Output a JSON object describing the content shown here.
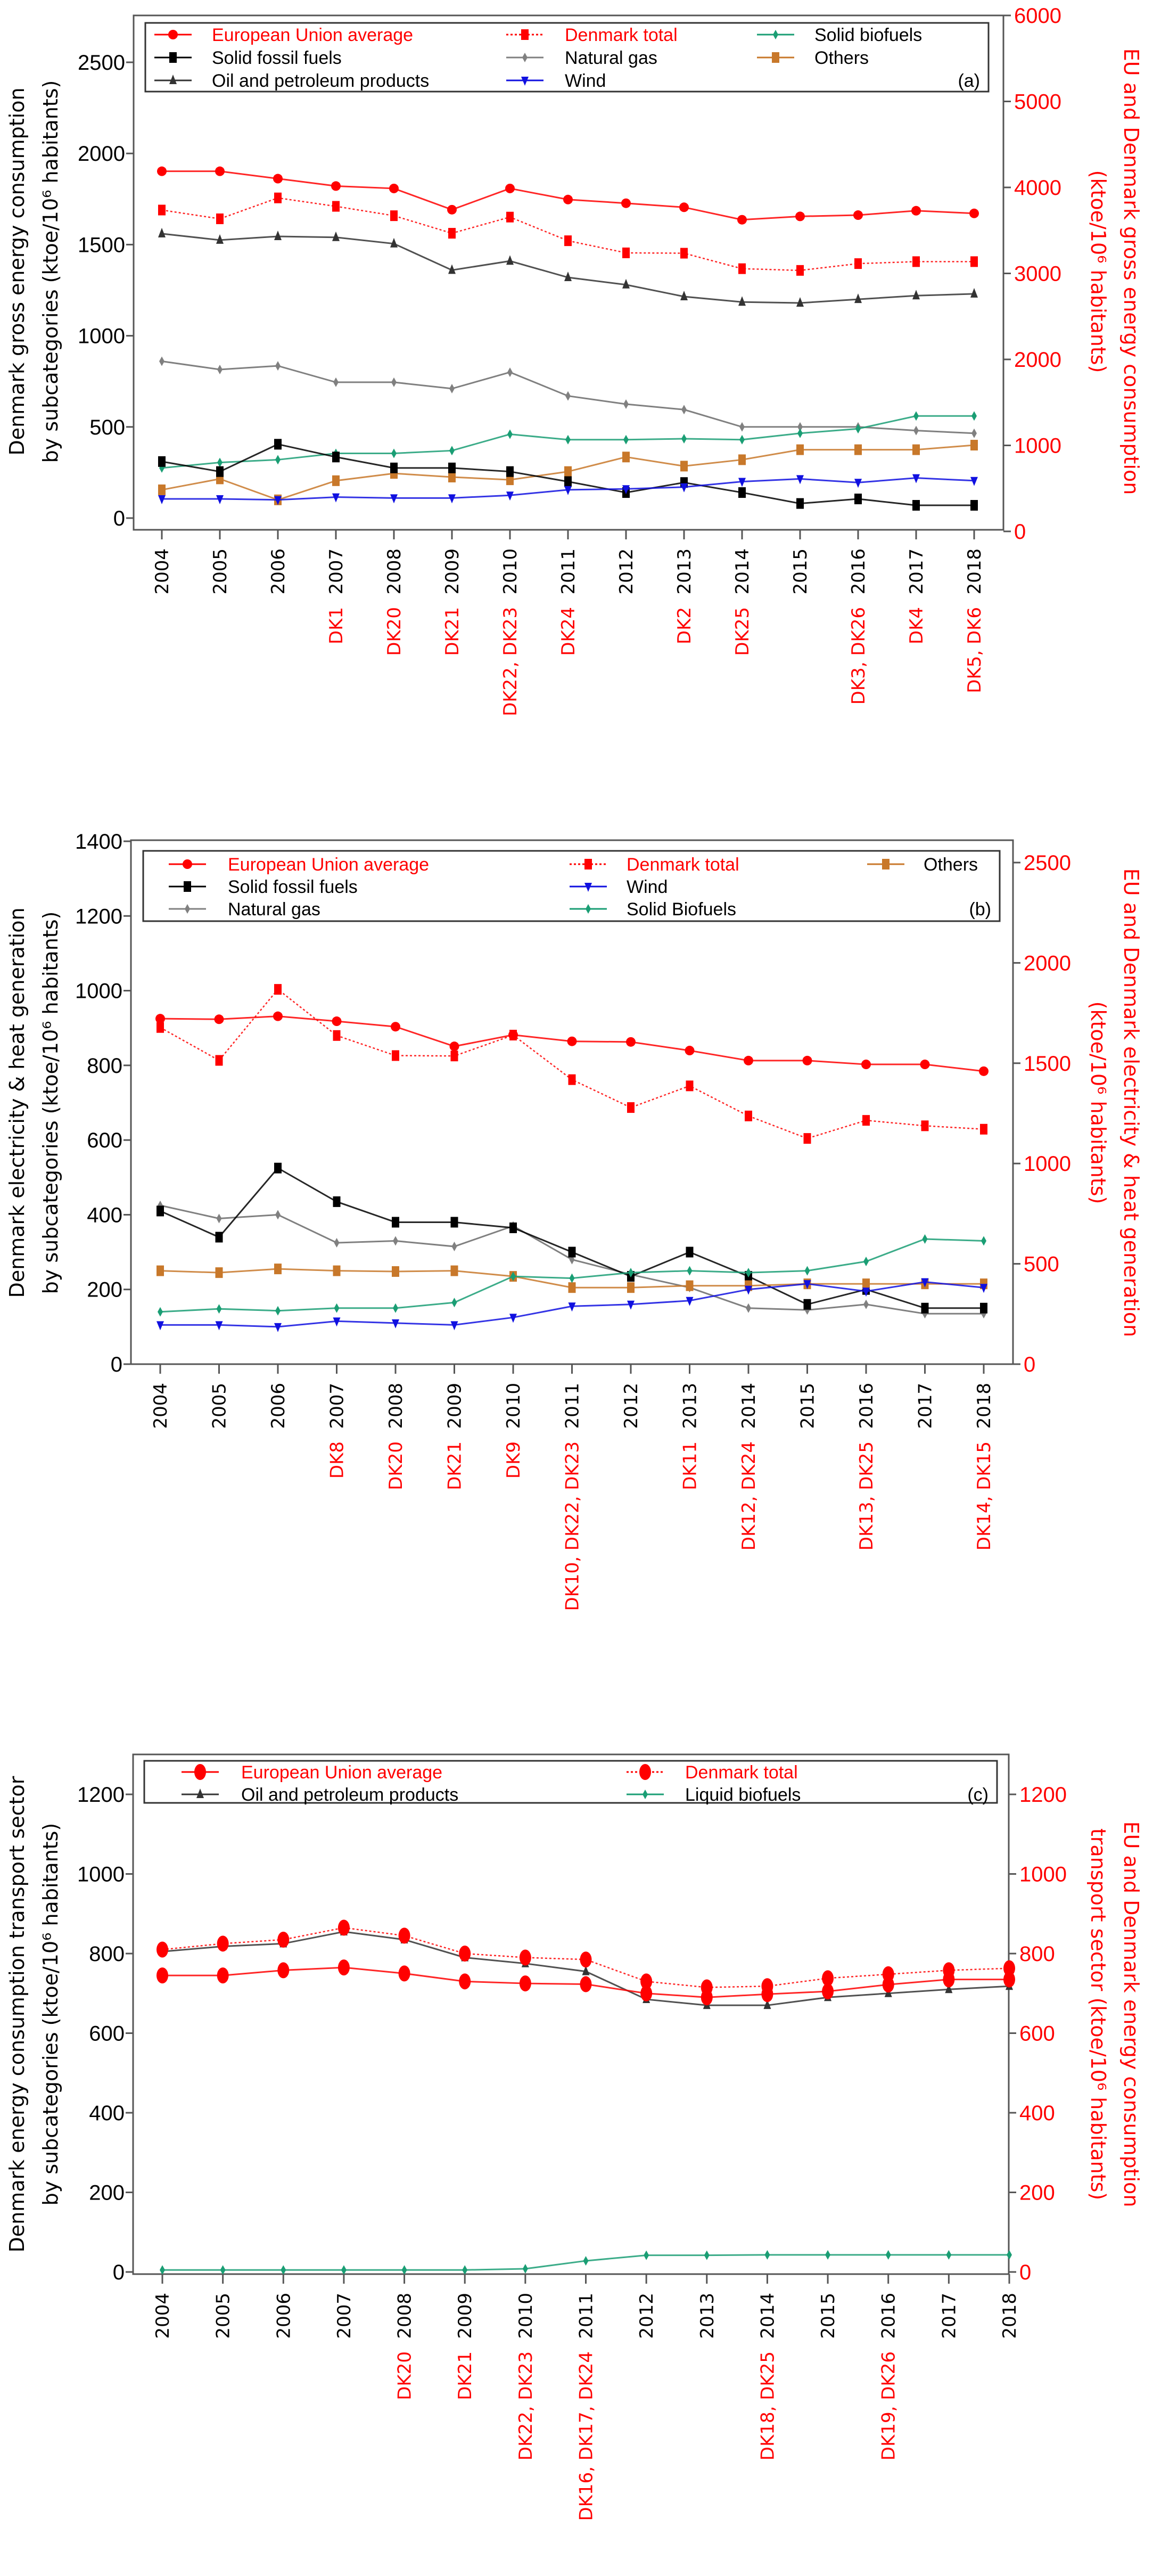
{
  "chart_data": [
    {
      "type": "line",
      "panel_label": "(a)",
      "ylabel_left": [
        "Denmark gross energy consumption",
        "by subcategories (ktoe/10⁶ habitants)"
      ],
      "ylabel_right": [
        "EU and Denmark gross energy consumption",
        "(ktoe/10⁶ habitants)"
      ],
      "left_axis": {
        "range": [
          0,
          2750
        ],
        "ticks": [
          0,
          500,
          1000,
          1500,
          2000,
          2500
        ]
      },
      "right_axis": {
        "range": [
          0,
          6000
        ],
        "ticks": [
          0,
          1000,
          2000,
          3000,
          4000,
          5000,
          6000
        ]
      },
      "x": [
        2004,
        2005,
        2006,
        2007,
        2008,
        2009,
        2010,
        2011,
        2012,
        2013,
        2014,
        2015,
        2016,
        2017,
        2018
      ],
      "x_annotations": [
        "",
        "",
        "",
        "DK1",
        "DK20",
        "DK21",
        "DK22, DK23",
        "DK24",
        "",
        "DK2",
        "DK25",
        "",
        "DK3, DK26",
        "DK4",
        "DK5, DK6"
      ],
      "legend_columns": [
        [
          "European Union average",
          "Solid fossil fuels",
          "Oil and petroleum products"
        ],
        [
          "Denmark total",
          "Natural gas",
          "Wind"
        ],
        [
          "Solid biofuels",
          "Others"
        ]
      ],
      "series": [
        {
          "name": "European Union average",
          "axis": "right",
          "color": "#ff0000",
          "marker": "circle",
          "dash": false,
          "text_red": true,
          "values": [
            4188,
            4188,
            4102,
            4016,
            3988,
            3741,
            3988,
            3859,
            3816,
            3769,
            3624,
            3663,
            3678,
            3729,
            3698
          ]
        },
        {
          "name": "Denmark total",
          "axis": "right",
          "color": "#ff0000",
          "marker": "square",
          "dash": true,
          "text_red": true,
          "values": [
            3737,
            3635,
            3878,
            3780,
            3671,
            3467,
            3655,
            3380,
            3239,
            3235,
            3055,
            3035,
            3114,
            3137,
            3137
          ]
        },
        {
          "name": "Oil and petroleum products",
          "axis": "left",
          "color": "#333333",
          "marker": "triangle-up",
          "dash": false,
          "values": [
            1560,
            1525,
            1545,
            1540,
            1505,
            1360,
            1410,
            1320,
            1280,
            1215,
            1185,
            1180,
            1200,
            1220,
            1230
          ]
        },
        {
          "name": "Natural gas",
          "axis": "left",
          "color": "#808080",
          "marker": "diamond",
          "dash": false,
          "values": [
            860,
            815,
            835,
            745,
            745,
            710,
            800,
            670,
            625,
            595,
            500,
            500,
            500,
            480,
            465
          ]
        },
        {
          "name": "Solid biofuels",
          "axis": "left",
          "color": "#1a9e74",
          "marker": "diamond",
          "dash": false,
          "values": [
            275,
            305,
            320,
            355,
            355,
            370,
            460,
            430,
            430,
            435,
            430,
            465,
            490,
            560,
            560
          ]
        },
        {
          "name": "Others",
          "axis": "left",
          "color": "#c8782a",
          "marker": "square",
          "dash": false,
          "values": [
            155,
            215,
            100,
            205,
            245,
            225,
            210,
            255,
            335,
            285,
            320,
            375,
            375,
            375,
            400
          ]
        },
        {
          "name": "Solid fossil fuels",
          "axis": "left",
          "color": "#000000",
          "marker": "square",
          "dash": false,
          "values": [
            310,
            255,
            405,
            335,
            275,
            275,
            255,
            200,
            140,
            195,
            140,
            80,
            105,
            70,
            70
          ]
        },
        {
          "name": "Wind",
          "axis": "left",
          "color": "#1010e0",
          "marker": "triangle-down",
          "dash": false,
          "values": [
            105,
            105,
            100,
            115,
            110,
            110,
            125,
            155,
            160,
            170,
            200,
            215,
            195,
            220,
            205
          ]
        }
      ]
    },
    {
      "type": "line",
      "panel_label": "(b)",
      "ylabel_left": [
        "Denmark electricity & heat generation",
        "by subcategories (ktoe/10⁶ habitants)"
      ],
      "ylabel_right": [
        "EU and Denmark electricity & heat generation",
        "(ktoe/10⁶ habitants)"
      ],
      "left_axis": {
        "range": [
          0,
          1400
        ],
        "ticks": [
          0,
          200,
          400,
          600,
          800,
          1000,
          1200,
          1400
        ]
      },
      "right_axis": {
        "range": [
          0,
          2600
        ],
        "ticks": [
          0,
          500,
          1000,
          1500,
          2000,
          2500
        ]
      },
      "x": [
        2004,
        2005,
        2006,
        2007,
        2008,
        2009,
        2010,
        2011,
        2012,
        2013,
        2014,
        2015,
        2016,
        2017,
        2018
      ],
      "x_annotations": [
        "",
        "",
        "",
        "DK8",
        "DK20",
        "DK21",
        "DK9",
        "DK10, DK22, DK23",
        "",
        "DK11",
        "DK12, DK24",
        "",
        "DK13, DK25",
        "",
        "DK14, DK15"
      ],
      "legend_columns": [
        [
          "European Union average",
          "Solid fossil fuels",
          "Natural gas"
        ],
        [
          "Denmark total",
          "Wind",
          "Solid Biofuels"
        ],
        [
          "Others"
        ]
      ],
      "series": [
        {
          "name": "European Union average",
          "axis": "right",
          "color": "#ff0000",
          "marker": "circle",
          "dash": false,
          "text_red": true,
          "values": [
            1722,
            1719,
            1734,
            1709,
            1682,
            1584,
            1641,
            1609,
            1606,
            1563,
            1513,
            1513,
            1494,
            1494,
            1460
          ]
        },
        {
          "name": "Denmark total",
          "axis": "right",
          "color": "#ff0000",
          "marker": "square",
          "dash": true,
          "text_red": true,
          "values": [
            1678,
            1514,
            1868,
            1638,
            1538,
            1536,
            1640,
            1418,
            1279,
            1387,
            1237,
            1125,
            1215,
            1188,
            1171
          ]
        },
        {
          "name": "Natural gas",
          "axis": "left",
          "color": "#808080",
          "marker": "diamond",
          "dash": false,
          "values": [
            425,
            390,
            400,
            325,
            330,
            315,
            370,
            280,
            240,
            205,
            150,
            145,
            160,
            135,
            135
          ]
        },
        {
          "name": "Solid fossil fuels",
          "axis": "left",
          "color": "#000000",
          "marker": "square",
          "dash": false,
          "values": [
            410,
            340,
            525,
            435,
            380,
            380,
            365,
            300,
            235,
            300,
            235,
            160,
            200,
            150,
            150
          ]
        },
        {
          "name": "Others",
          "axis": "left",
          "color": "#c8782a",
          "marker": "square",
          "dash": false,
          "values": [
            250,
            245,
            255,
            250,
            248,
            250,
            235,
            205,
            205,
            210,
            210,
            215,
            215,
            215,
            215
          ]
        },
        {
          "name": "Solid Biofuels",
          "axis": "left",
          "color": "#1a9e74",
          "marker": "diamond",
          "dash": false,
          "values": [
            140,
            148,
            143,
            150,
            150,
            165,
            235,
            230,
            245,
            250,
            245,
            250,
            275,
            335,
            330
          ]
        },
        {
          "name": "Wind",
          "axis": "left",
          "color": "#1010e0",
          "marker": "triangle-down",
          "dash": false,
          "values": [
            105,
            105,
            100,
            115,
            110,
            105,
            125,
            155,
            160,
            170,
            200,
            215,
            195,
            220,
            205
          ]
        }
      ]
    },
    {
      "type": "line",
      "panel_label": "(c)",
      "ylabel_left": [
        "Denmark energy consumption transport sector",
        "by subcategories (ktoe/10⁶ habitants)"
      ],
      "ylabel_right": [
        "EU and Denmark energy consumption",
        "transport sector (ktoe/10⁶ habitants)"
      ],
      "left_axis": {
        "range": [
          0,
          1290
        ],
        "ticks": [
          0,
          200,
          400,
          600,
          800,
          1000,
          1200
        ]
      },
      "right_axis": {
        "range": [
          0,
          1290
        ],
        "ticks": [
          0,
          200,
          400,
          600,
          800,
          1000,
          1200
        ]
      },
      "x": [
        2004,
        2005,
        2006,
        2007,
        2008,
        2009,
        2010,
        2011,
        2012,
        2013,
        2014,
        2015,
        2016,
        2017,
        2018
      ],
      "x_annotations": [
        "",
        "",
        "",
        "",
        "DK20",
        "DK21",
        "DK22, DK23",
        "DK16, DK17, DK24",
        "",
        "",
        "DK18, DK25",
        "",
        "DK19, DK26",
        "",
        ""
      ],
      "legend_columns": [
        [
          "European Union average",
          "Oil and petroleum products"
        ],
        [
          "Denmark total",
          "Liquid biofuels"
        ]
      ],
      "series": [
        {
          "name": "Oil and petroleum products",
          "axis": "left",
          "color": "#333333",
          "marker": "triangle-up",
          "dash": false,
          "values": [
            805,
            818,
            825,
            855,
            835,
            790,
            775,
            755,
            685,
            670,
            670,
            690,
            700,
            710,
            718
          ]
        },
        {
          "name": "Liquid biofuels",
          "axis": "left",
          "color": "#1a9e74",
          "marker": "diamond",
          "dash": false,
          "values": [
            5,
            5,
            5,
            5,
            5,
            5,
            8,
            28,
            42,
            42,
            43,
            43,
            43,
            43,
            43
          ]
        },
        {
          "name": "European Union average",
          "axis": "right",
          "color": "#ff0000",
          "marker": "circle-big",
          "dash": false,
          "text_red": true,
          "values": [
            745,
            745,
            758,
            765,
            750,
            730,
            725,
            723,
            700,
            690,
            698,
            705,
            722,
            735,
            735
          ]
        },
        {
          "name": "Denmark total",
          "axis": "right",
          "color": "#ff0000",
          "marker": "circle-big",
          "dash": true,
          "text_red": true,
          "values": [
            810,
            825,
            835,
            865,
            845,
            800,
            790,
            785,
            730,
            715,
            718,
            738,
            748,
            758,
            763
          ]
        }
      ]
    }
  ]
}
